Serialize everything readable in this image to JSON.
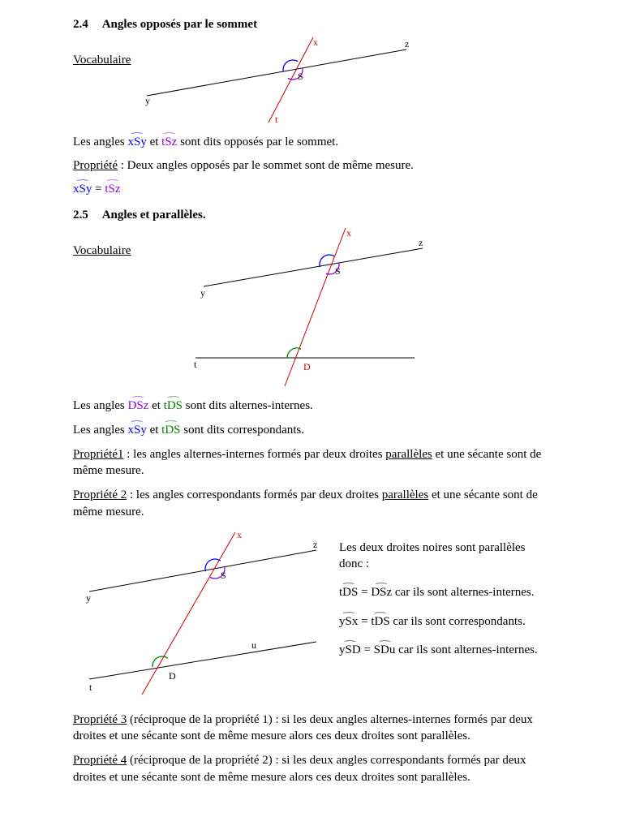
{
  "s24": {
    "num": "2.4",
    "title": "Angles opposés par le sommet",
    "vocab": "Vocabulaire",
    "fig": {
      "bg": "#ffffff",
      "line_color": "#000000",
      "red": "#cc0000",
      "arc_blue": "#0000ee",
      "arc_purple": "#9400d3",
      "labels": {
        "x": "x",
        "y": "y",
        "z": "z",
        "t": "t",
        "S": "S"
      }
    },
    "sentence1_a": "Les angles ",
    "sentence1_ang1": "xSy",
    "sentence1_b": " et ",
    "sentence1_ang2": "tSz",
    "sentence1_c": " sont dits opposés par le sommet.",
    "prop_label": "Propriété",
    "prop_text": " : Deux angles opposés par le sommet sont de même mesure.",
    "eq_left": "xSy",
    "eq_mid": " = ",
    "eq_right": "tSz"
  },
  "s25": {
    "num": "2.5",
    "title": "Angles et parallèles.",
    "vocab": "Vocabulaire",
    "fig": {
      "bg": "#ffffff",
      "line_color": "#000000",
      "red": "#cc0000",
      "arc_blue": "#0000ee",
      "arc_purple": "#9400d3",
      "arc_green": "#008000",
      "labels": {
        "x": "x",
        "y": "y",
        "z": "z",
        "t": "t",
        "S": "S",
        "D": "D"
      }
    },
    "sent_ai_a": "Les angles ",
    "sent_ai_ang1": "DSz",
    "sent_ai_b": " et ",
    "sent_ai_ang2": "tDS",
    "sent_ai_c": " sont dits alternes-internes.",
    "sent_corr_a": "Les angles ",
    "sent_corr_ang1": "xSy",
    "sent_corr_b": " et ",
    "sent_corr_ang2": "tDS",
    "sent_corr_c": " sont dits correspondants.",
    "prop1_label": "Propriété1",
    "prop1_a": " : les angles alternes-internes formés par deux droites ",
    "prop1_par": "parallèles",
    "prop1_b": " et une sécante sont de même mesure.",
    "prop2_label": "Propriété 2",
    "prop2_a": " : les angles correspondants formés par deux droites ",
    "prop2_par": "parallèles",
    "prop2_b": " et une sécante sont de même mesure.",
    "fig2": {
      "labels": {
        "x": "x",
        "y": "y",
        "z": "z",
        "t": "t",
        "u": "u",
        "S": "S",
        "D": "D"
      }
    },
    "right_intro": "Les deux droites noires sont parallèles donc :",
    "r1_l": "tDS",
    "r1_m": " = ",
    "r1_r": "DSz",
    "r1_tail": " car ils sont alternes-internes.",
    "r2_l": "ySx",
    "r2_m": " = ",
    "r2_r": "tDS",
    "r2_tail": " car ils sont correspondants.",
    "r3_l": "ySD",
    "r3_m": " = ",
    "r3_r": "SDu",
    "r3_tail": " car ils sont alternes-internes.",
    "prop3_label": "Propriété 3",
    "prop3_text": " (réciproque de la propriété 1) : si les deux angles alternes-internes formés par deux droites et une sécante sont de même mesure alors ces deux droites sont parallèles.",
    "prop4_label": "Propriété 4",
    "prop4_text": " (réciproque de la propriété 2) : si les deux angles correspondants formés par deux droites et une sécante sont de même mesure alors ces deux droites sont parallèles."
  }
}
